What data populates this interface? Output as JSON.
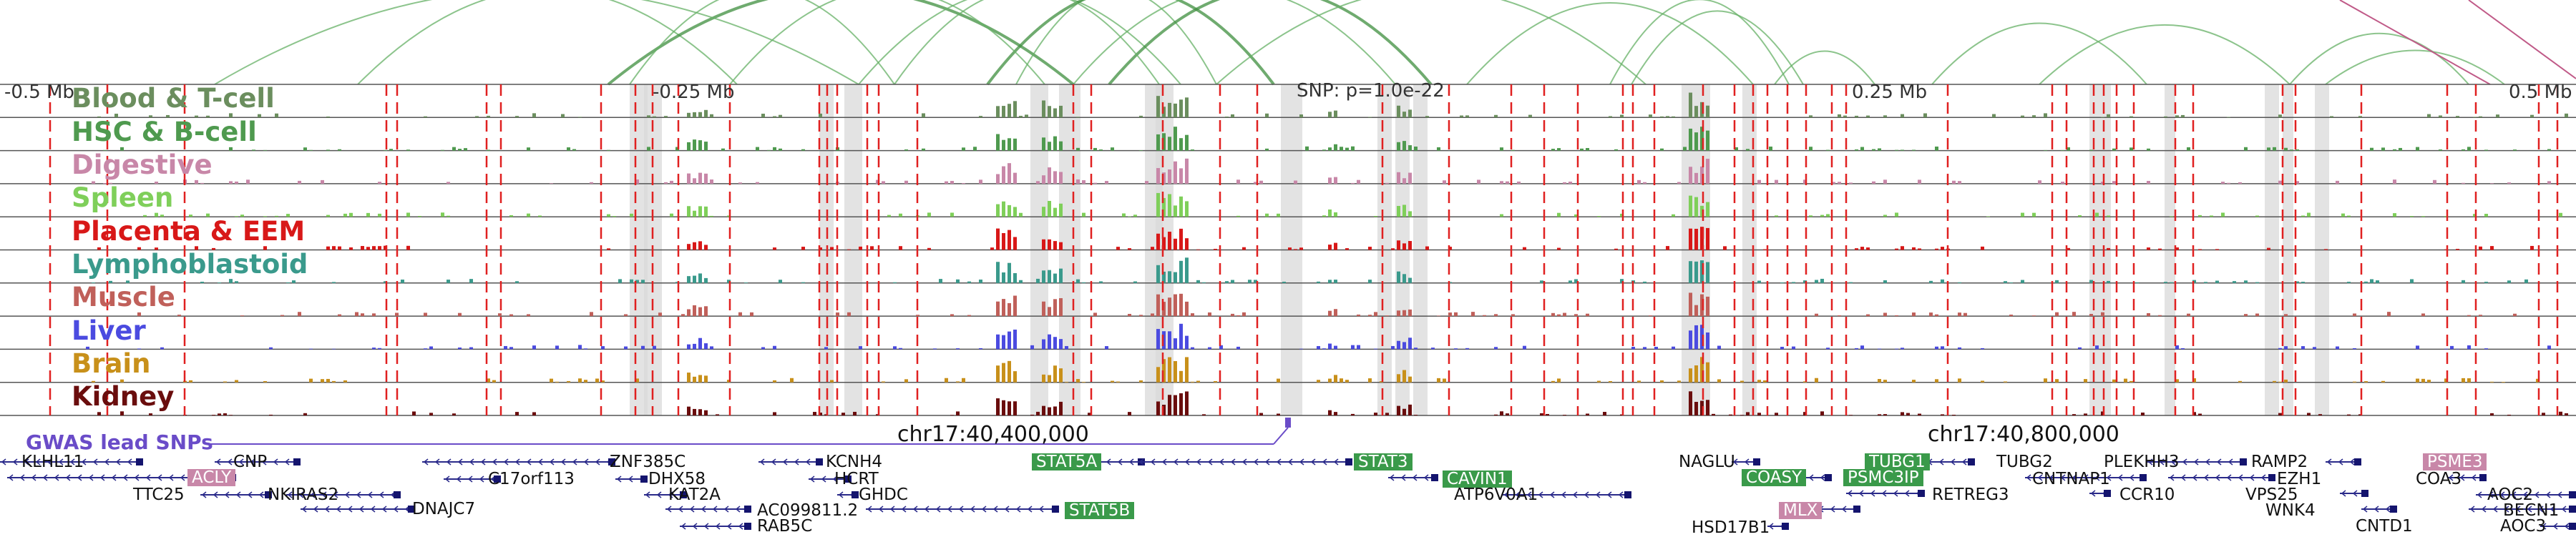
{
  "snp_label": "SNP: p=1.0e-22",
  "gwas_label": "GWAS lead SNPs",
  "coords": [
    "-0.5 Mb",
    "-0.25 Mb",
    "0.25 Mb",
    "0.5 Mb"
  ],
  "chromosome_labels": [
    "chr17:40,400,000",
    "chr17:40,800,000"
  ],
  "tracks": [
    {
      "name": "Blood & T-cell",
      "color": "#6b8e5e"
    },
    {
      "name": "HSC & B-cell",
      "color": "#4f9a4f"
    },
    {
      "name": "Digestive",
      "color": "#c887a8"
    },
    {
      "name": "Spleen",
      "color": "#7fcf5a"
    },
    {
      "name": "Placenta & EEM",
      "color": "#d81818"
    },
    {
      "name": "Lymphoblastoid",
      "color": "#3a9a8c"
    },
    {
      "name": "Muscle",
      "color": "#c0605a"
    },
    {
      "name": "Liver",
      "color": "#4b4be0"
    },
    {
      "name": "Brain",
      "color": "#c8901a"
    },
    {
      "name": "Kidney",
      "color": "#6a0d0d"
    }
  ],
  "genes": [
    {
      "name": "KLHL11",
      "highlight": false
    },
    {
      "name": "CNP",
      "highlight": false
    },
    {
      "name": "ACLY",
      "highlight": true,
      "color": "#c887a8"
    },
    {
      "name": "TTC25",
      "highlight": false
    },
    {
      "name": "NKIRAS2",
      "highlight": false
    },
    {
      "name": "DNAJC7",
      "highlight": false
    },
    {
      "name": "ZNF385C",
      "highlight": false
    },
    {
      "name": "C17orf113",
      "highlight": false
    },
    {
      "name": "DHX58",
      "highlight": false
    },
    {
      "name": "KAT2A",
      "highlight": false
    },
    {
      "name": "KCNH4",
      "highlight": false
    },
    {
      "name": "HCRT",
      "highlight": false
    },
    {
      "name": "GHDC",
      "highlight": false
    },
    {
      "name": "AC099811.2",
      "highlight": false
    },
    {
      "name": "RAB5C",
      "highlight": false
    },
    {
      "name": "STAT5A",
      "highlight": true,
      "color": "#3a9a4a"
    },
    {
      "name": "STAT5B",
      "highlight": true,
      "color": "#3a9a4a"
    },
    {
      "name": "STAT3",
      "highlight": true,
      "color": "#3a9a4a"
    },
    {
      "name": "CAVIN1",
      "highlight": true,
      "color": "#3a9a4a"
    },
    {
      "name": "ATP6V0A1",
      "highlight": false
    },
    {
      "name": "NAGLU",
      "highlight": false
    },
    {
      "name": "HSD17B1",
      "highlight": false
    },
    {
      "name": "COASY",
      "highlight": true,
      "color": "#3a9a4a"
    },
    {
      "name": "MLX",
      "highlight": true,
      "color": "#c887a8"
    },
    {
      "name": "TUBG1",
      "highlight": true,
      "color": "#3a9a4a"
    },
    {
      "name": "PSMC3IP",
      "highlight": true,
      "color": "#3a9a4a"
    },
    {
      "name": "RETREG3",
      "highlight": false
    },
    {
      "name": "TUBG2",
      "highlight": false
    },
    {
      "name": "CNTNAP1",
      "highlight": false
    },
    {
      "name": "PLEKHH3",
      "highlight": false
    },
    {
      "name": "CCR10",
      "highlight": false
    },
    {
      "name": "EZH1",
      "highlight": false
    },
    {
      "name": "RAMP2",
      "highlight": false
    },
    {
      "name": "VPS25",
      "highlight": false
    },
    {
      "name": "WNK4",
      "highlight": false
    },
    {
      "name": "CNTD1",
      "highlight": false
    },
    {
      "name": "PSME3",
      "highlight": true,
      "color": "#c887a8"
    },
    {
      "name": "COA3",
      "highlight": false
    },
    {
      "name": "AOC2",
      "highlight": false
    },
    {
      "name": "BECN1",
      "highlight": false
    },
    {
      "name": "AOC3",
      "highlight": false
    }
  ]
}
